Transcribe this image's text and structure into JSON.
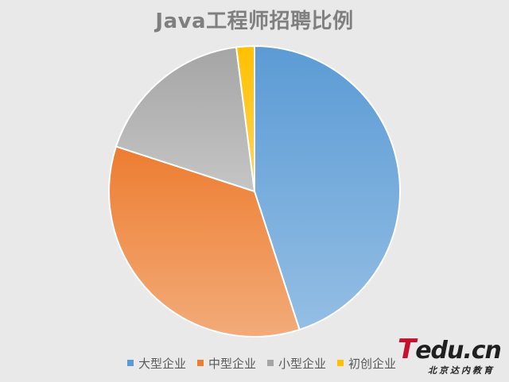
{
  "chart_data": {
    "type": "pie",
    "title": "Java工程师招聘比例",
    "categories": [
      "大型企业",
      "中型企业",
      "小型企业",
      "初创企业"
    ],
    "values": [
      45,
      35,
      18,
      2
    ],
    "colors": [
      "#5b9bd5",
      "#ed7d31",
      "#a5a5a5",
      "#ffc000"
    ],
    "legend_position": "bottom"
  },
  "logo": {
    "text": "Tedu.cn",
    "subtitle": "北京达内教育"
  }
}
